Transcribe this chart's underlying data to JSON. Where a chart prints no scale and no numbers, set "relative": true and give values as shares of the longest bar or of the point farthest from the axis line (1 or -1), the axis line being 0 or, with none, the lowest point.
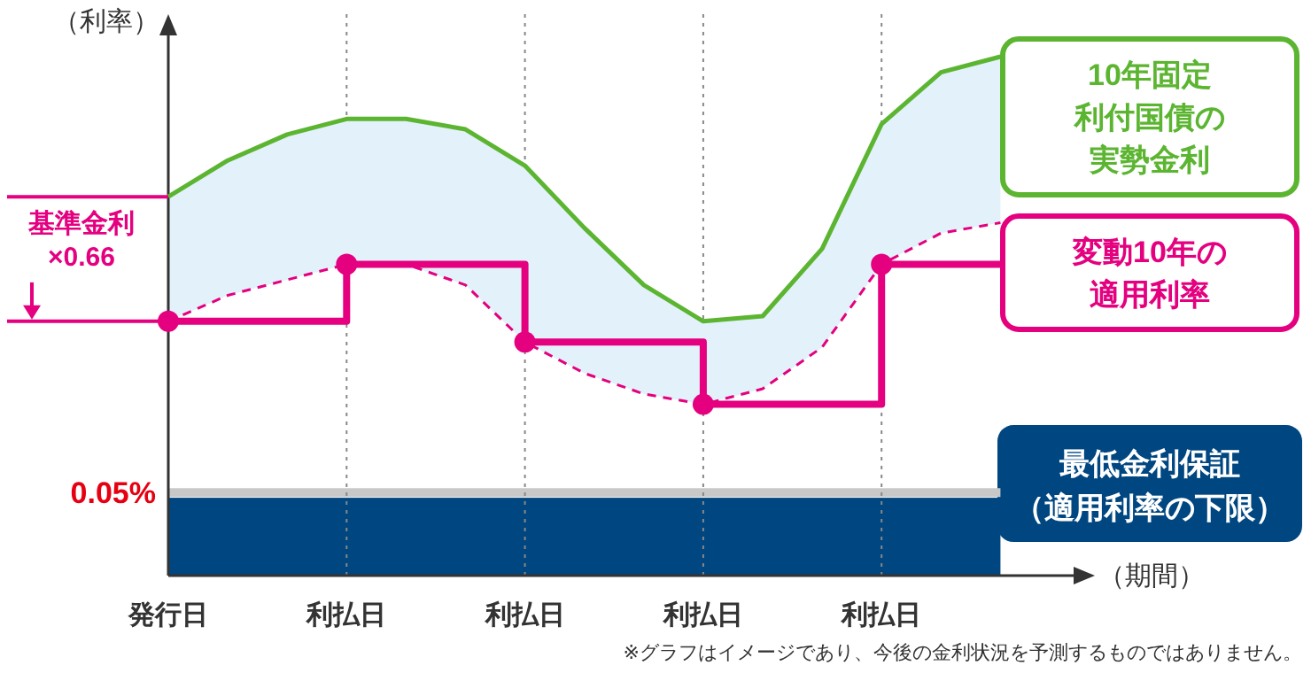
{
  "chart_data": {
    "type": "line",
    "relative": true,
    "ylabel": "（利率）",
    "xlabel": "（期間）",
    "categories": [
      "発行日",
      null,
      null,
      "利払日",
      null,
      null,
      "利払日",
      null,
      null,
      "利払日",
      null,
      null,
      "利払日",
      null,
      null
    ],
    "grid": "x",
    "legend": "right",
    "series": [
      {
        "name": "10年固定利付国債の実勢金利",
        "color": "#5cb531",
        "values": [
          0.73,
          0.8,
          0.85,
          0.88,
          0.88,
          0.86,
          0.79,
          0.67,
          0.56,
          0.49,
          0.5,
          0.63,
          0.87,
          0.97,
          1
        ],
        "upper": [
          0.73,
          0.8,
          0.85,
          0.88,
          0.88,
          0.86,
          0.79,
          0.67,
          0.56,
          0.49,
          0.5,
          0.63,
          0.87,
          0.97,
          1
        ],
        "lower": [
          0.49,
          0.54,
          0.57,
          0.6,
          0.6,
          0.56,
          0.45,
          0.39,
          0.35,
          0.33,
          0.36,
          0.44,
          0.6,
          0.66,
          0.68
        ]
      },
      {
        "color": "#e4007f",
        "line_style": "dashed",
        "values": [
          0.49,
          0.54,
          0.57,
          0.6,
          0.6,
          0.56,
          0.45,
          0.39,
          0.35,
          0.33,
          0.36,
          0.44,
          0.6,
          0.66,
          0.68
        ]
      },
      {
        "name": "変動10年の適用利率",
        "type": "step",
        "color": "#e4007f",
        "values": [
          0.49,
          0.49,
          0.49,
          0.6,
          0.6,
          0.6,
          0.45,
          0.45,
          0.45,
          0.33,
          0.33,
          0.33,
          0.6,
          0.6,
          0.6
        ]
      },
      {
        "type": "scatter",
        "color": "#e4007f",
        "marker": "circle",
        "values": [
          0.49,
          null,
          null,
          0.6,
          null,
          null,
          0.45,
          null,
          null,
          0.33,
          null,
          null,
          0.6,
          null,
          null
        ]
      }
    ],
    "ref_lines": [
      {
        "axis": "y",
        "value": 0.16,
        "color": "#c8c8c8"
      }
    ],
    "bands": [
      {
        "axis": "y",
        "from": 0,
        "to": 0.15,
        "label": "最低金利保証（適用利率の下限）",
        "color": "#004680"
      }
    ],
    "annotations": [
      {
        "text": "基準金利×0.66",
        "x": "発行日",
        "y": 0.49
      },
      "0.05%",
      "※グラフはイメージであり、今後の金利状況を予測するものではありません。"
    ]
  }
}
